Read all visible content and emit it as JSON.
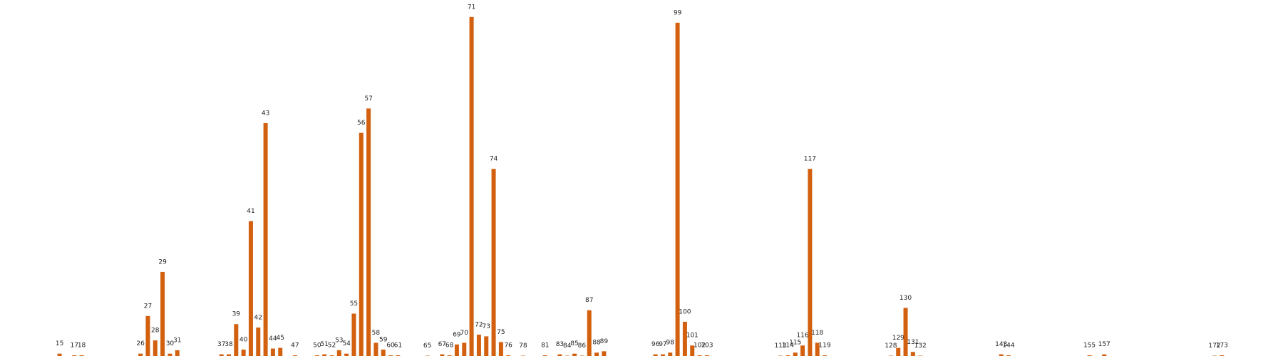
{
  "chart_data": {
    "type": "bar",
    "color": "#d2600f",
    "x": [
      15,
      17,
      18,
      26,
      27,
      28,
      29,
      30,
      31,
      37,
      38,
      39,
      40,
      41,
      42,
      43,
      44,
      45,
      47,
      50,
      51,
      52,
      53,
      54,
      55,
      56,
      57,
      58,
      59,
      60,
      61,
      65,
      67,
      68,
      69,
      70,
      71,
      72,
      73,
      74,
      75,
      76,
      78,
      81,
      83,
      84,
      85,
      86,
      87,
      88,
      89,
      96,
      97,
      98,
      99,
      100,
      101,
      102,
      103,
      113,
      114,
      115,
      116,
      117,
      118,
      119,
      128,
      129,
      130,
      131,
      132,
      143,
      144,
      155,
      157,
      172,
      173
    ],
    "values": [
      0.7,
      0.2,
      0.2,
      0.7,
      11.8,
      4.6,
      24.8,
      0.7,
      1.7,
      0.5,
      0.5,
      9.4,
      1.9,
      39.8,
      8.4,
      68.7,
      2.2,
      2.4,
      0.2,
      0.2,
      0.5,
      0.2,
      1.7,
      0.7,
      12.5,
      65.8,
      73,
      3.9,
      1.9,
      0.2,
      0.2,
      0.1,
      0.5,
      0.2,
      3.4,
      3.9,
      100,
      6.3,
      5.8,
      55.2,
      4.1,
      0.2,
      0.1,
      0.2,
      0.5,
      0.1,
      0.7,
      0.1,
      13.5,
      1.0,
      1.4,
      0.5,
      0.5,
      1.0,
      98.3,
      10.1,
      3.1,
      0.2,
      0.2,
      0.1,
      0.2,
      1.0,
      3.1,
      55.2,
      3.9,
      0.2,
      0.1,
      2.4,
      14.2,
      1.2,
      0.1,
      0.5,
      0.2,
      0.2,
      0.5,
      0.1,
      0.2
    ],
    "xlim": [
      6.9,
      181.3
    ],
    "ylim": [
      0,
      105
    ]
  }
}
